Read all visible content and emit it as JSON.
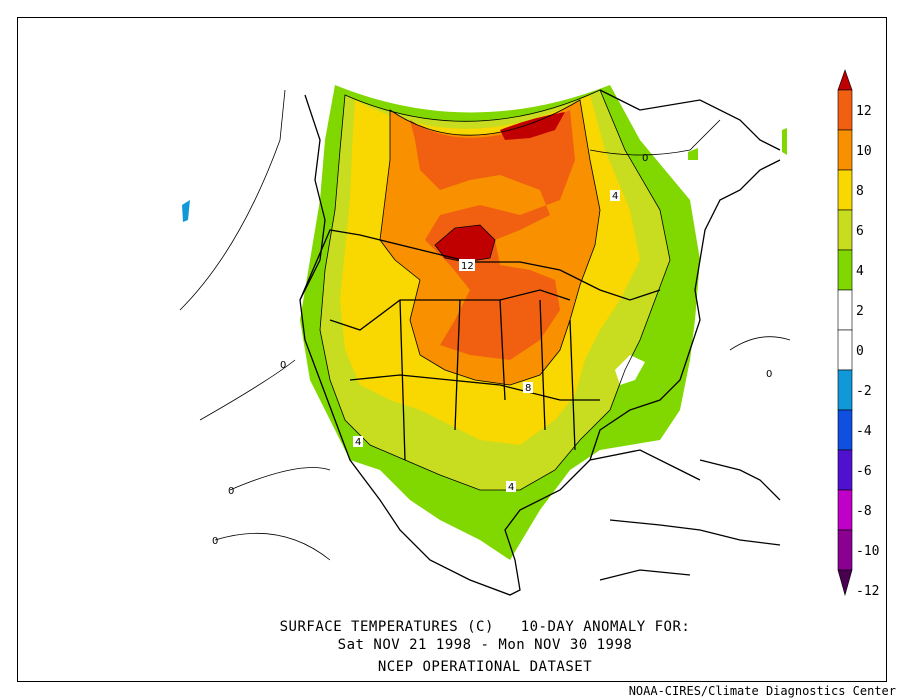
{
  "title_line1": "SURFACE TEMPERATURES (C)   10-DAY ANOMALY FOR:",
  "title_line2": "Sat NOV 21 1998 - Mon NOV 30 1998",
  "dataset": "NCEP OPERATIONAL DATASET",
  "credit": "NOAA-CIRES/Climate Diagnostics Center",
  "colorbar": {
    "levels": [
      "12",
      "10",
      "8",
      "6",
      "4",
      "2",
      "0",
      "-2",
      "-4",
      "-6",
      "-8",
      "-10",
      "-12"
    ],
    "colors": [
      "#c00000",
      "#f06010",
      "#f89000",
      "#f8d800",
      "#c8dc20",
      "#80d800",
      "#ffffff",
      "#ffffff",
      "#1098d8",
      "#1050e0",
      "#5010d0",
      "#c000c8",
      "#8a0090",
      "#4a0050"
    ]
  },
  "contour_labels": [
    "12",
    "8",
    "4",
    "4",
    "4",
    "0",
    "0",
    "0",
    "0",
    "0"
  ],
  "legend_palette": {
    "ge12": "#c00000",
    "10-12": "#f06010",
    "8-10": "#f89000",
    "6-8": "#f8d800",
    "4-6": "#c8dc20",
    "2-4": "#80d800"
  }
}
